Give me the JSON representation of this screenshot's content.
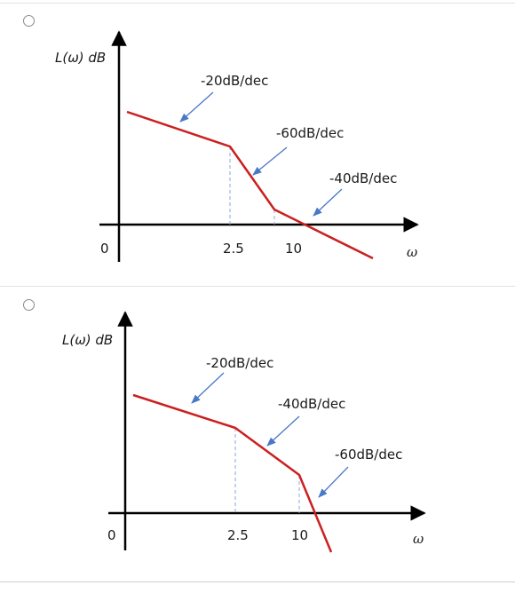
{
  "options": [
    {
      "ylabel": "L(ω) dB",
      "xlabel": "ω",
      "origin": "0",
      "ticks": [
        "2.5",
        "10"
      ],
      "slopes": [
        "-20dB/dec",
        "-60dB/dec",
        "-40dB/dec"
      ]
    },
    {
      "ylabel": "L(ω) dB",
      "xlabel": "ω",
      "origin": "0",
      "ticks": [
        "2.5",
        "10"
      ],
      "slopes": [
        "-20dB/dec",
        "-40dB/dec",
        "-60dB/dec"
      ]
    }
  ],
  "colors": {
    "curve": "#cc1f1f",
    "arrow": "#4a78c8",
    "guide": "#8aa6d8",
    "axis": "#000000"
  }
}
